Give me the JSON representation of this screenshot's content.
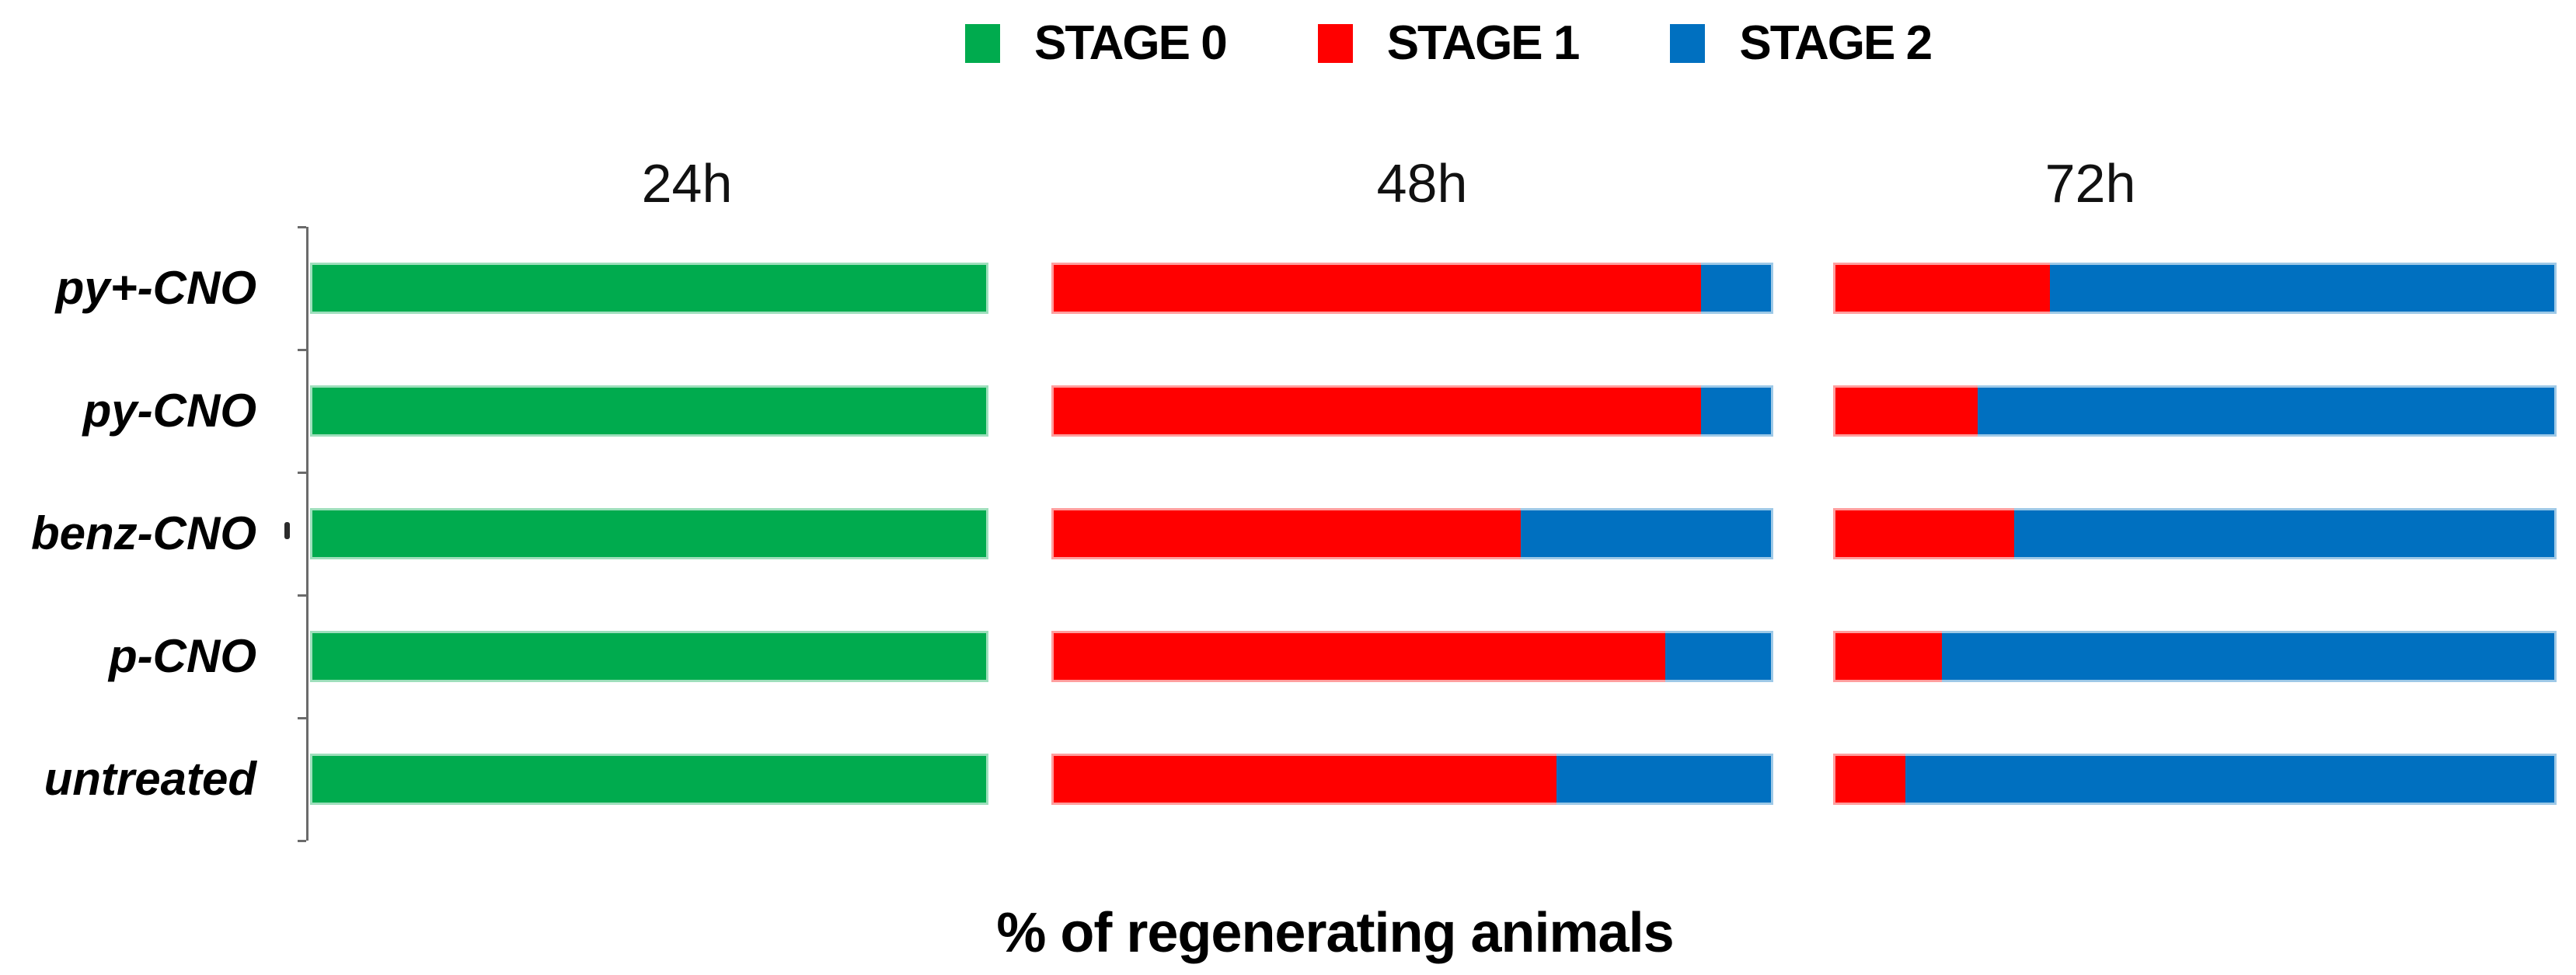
{
  "legend": {
    "items": [
      {
        "label": "STAGE 0",
        "color": "#00AB4E"
      },
      {
        "label": "STAGE 1",
        "color": "#FF0000"
      },
      {
        "label": "STAGE 2",
        "color": "#0070C0"
      }
    ]
  },
  "chart_data": {
    "type": "bar",
    "subtype": "horizontal-stacked-100percent",
    "title": "",
    "xlabel": "% of regenerating animals",
    "legend_position": "top-center",
    "grid": false,
    "xlim": [
      0,
      100
    ],
    "axis_color": "#6B6B6B",
    "time_groups": [
      "24h",
      "48h",
      "72h"
    ],
    "categories": [
      "py+-CNO",
      "py-CNO",
      "benz-CNO",
      "p-CNO",
      "untreated"
    ],
    "stages": [
      "STAGE 0",
      "STAGE 1",
      "STAGE 2"
    ],
    "stage_colors": {
      "STAGE 0": "#00AB4E",
      "STAGE 1": "#FF0000",
      "STAGE 2": "#0070C0"
    },
    "values_percent": {
      "24h": {
        "STAGE 0": [
          100,
          100,
          100,
          100,
          100
        ],
        "STAGE 1": [
          0,
          0,
          0,
          0,
          0
        ],
        "STAGE 2": [
          0,
          0,
          0,
          0,
          0
        ]
      },
      "48h": {
        "STAGE 0": [
          0,
          0,
          0,
          0,
          0
        ],
        "STAGE 1": [
          90,
          90,
          65,
          85,
          70
        ],
        "STAGE 2": [
          10,
          10,
          35,
          15,
          30
        ]
      },
      "72h": {
        "STAGE 0": [
          0,
          0,
          0,
          0,
          0
        ],
        "STAGE 1": [
          30,
          20,
          25,
          15,
          10
        ],
        "STAGE 2": [
          70,
          80,
          75,
          85,
          90
        ]
      }
    }
  }
}
